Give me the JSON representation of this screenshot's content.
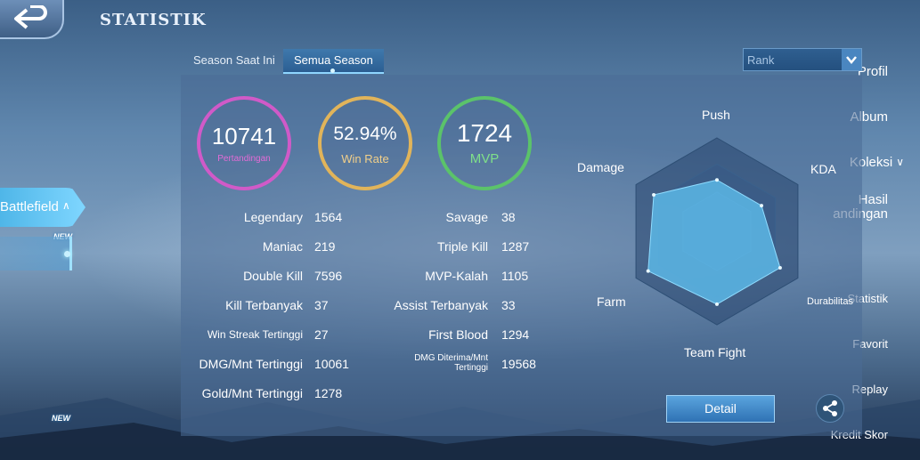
{
  "header": {
    "title": "STATISTIK"
  },
  "sidebar": {
    "items": [
      {
        "label": "Profil"
      },
      {
        "label": "Album"
      },
      {
        "label": "Koleksi"
      },
      {
        "label_line1": "Hasil",
        "label_line2": "andingan"
      },
      {
        "label": "Battlefield",
        "badge": "NEW"
      },
      {
        "label": "Statistik"
      },
      {
        "label": "Favorit"
      },
      {
        "label": "Replay"
      },
      {
        "label": "Kredit Skor",
        "badge": "NEW"
      }
    ]
  },
  "tabs": [
    {
      "label": "Season Saat Ini",
      "active": false
    },
    {
      "label": "Semua Season",
      "active": true
    }
  ],
  "rank_select": {
    "value": "Rank"
  },
  "summary": {
    "matches": {
      "value": "10741",
      "label": "Pertandingan",
      "color": "#d05ac8"
    },
    "winrate": {
      "value": "52.94%",
      "label": "Win Rate",
      "color": "#e1b45a"
    },
    "mvp": {
      "value": "1724",
      "label": "MVP",
      "color": "#5bc36a"
    }
  },
  "stats_left": [
    {
      "label": "Legendary",
      "value": "1564"
    },
    {
      "label": "Maniac",
      "value": "219"
    },
    {
      "label": "Double Kill",
      "value": "7596"
    },
    {
      "label": "Kill Terbanyak",
      "value": "37"
    },
    {
      "label": "Win Streak Tertinggi",
      "value": "27"
    },
    {
      "label": "DMG/Mnt Tertinggi",
      "value": "10061"
    },
    {
      "label": "Gold/Mnt Tertinggi",
      "value": "1278"
    }
  ],
  "stats_right": [
    {
      "label": "Savage",
      "value": "38"
    },
    {
      "label": "Triple Kill",
      "value": "1287"
    },
    {
      "label": "MVP-Kalah",
      "value": "1105"
    },
    {
      "label": "Assist Terbanyak",
      "value": "33"
    },
    {
      "label": "First Blood",
      "value": "1294"
    },
    {
      "label_line1": "DMG Diterima/Mnt",
      "label_line2": "Tertinggi",
      "value": "19568"
    }
  ],
  "radar": {
    "axes": [
      "Push",
      "KDA",
      "Durabilitas",
      "Team Fight",
      "Farm",
      "Damage"
    ],
    "values": [
      0.55,
      0.55,
      0.78,
      0.78,
      0.85,
      0.78
    ],
    "fill_color": "#5cb7e6"
  },
  "buttons": {
    "detail": "Detail"
  }
}
